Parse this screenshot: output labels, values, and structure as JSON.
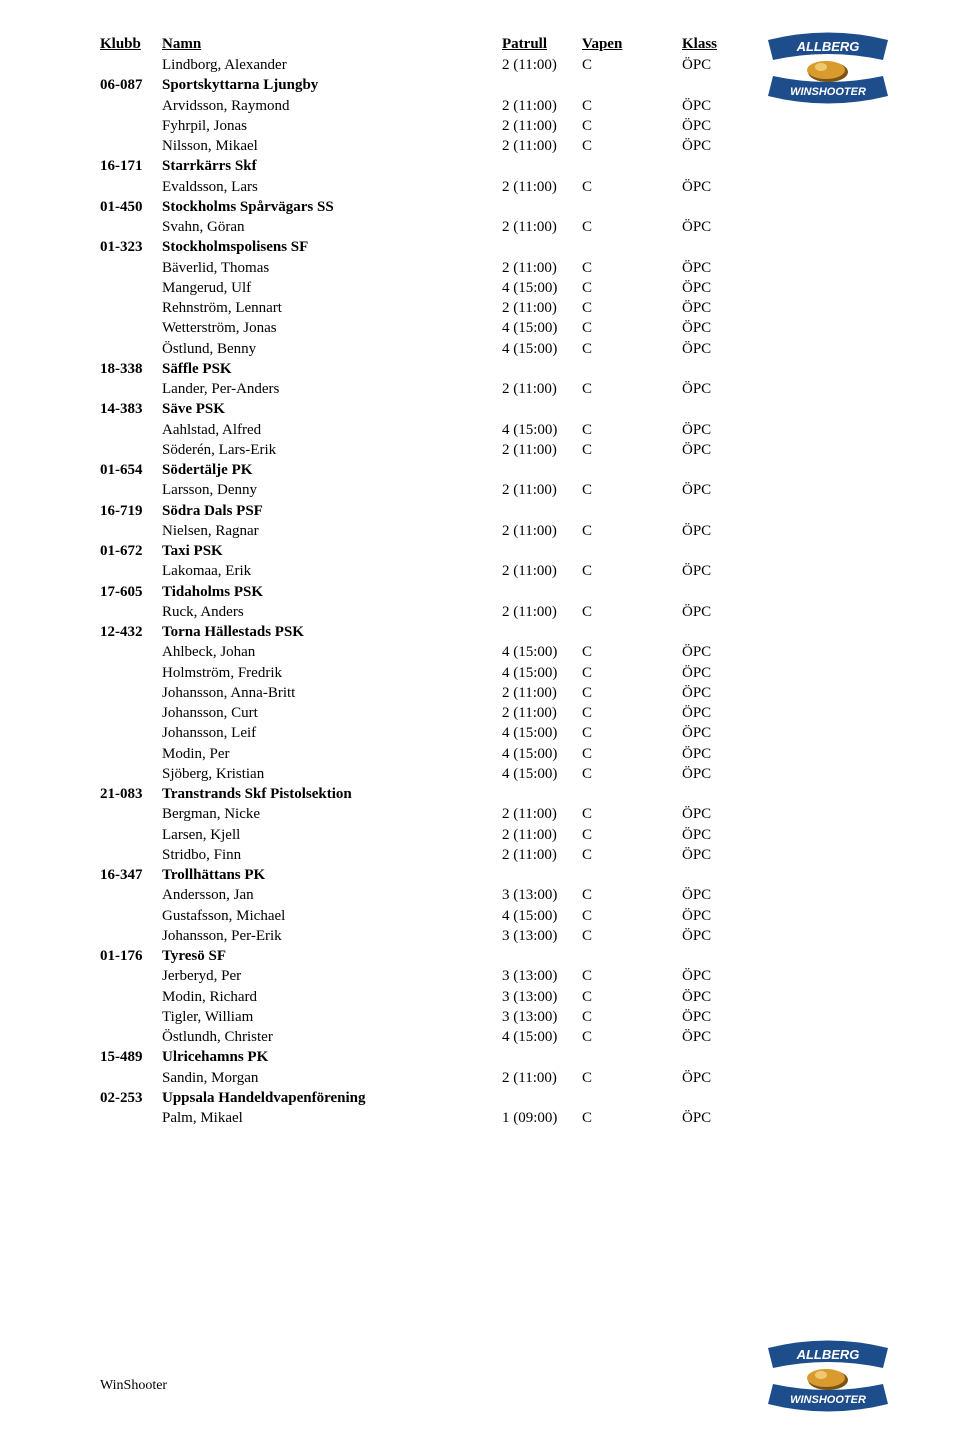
{
  "header": {
    "klubb": "Klubb",
    "namn": "Namn",
    "patrull": "Patrull",
    "vapen": "Vapen",
    "klass": "Klass"
  },
  "footer": "WinShooter",
  "logo": {
    "top_text": "ALLBERG",
    "bottom_text": "WINSHOOTER",
    "banner_color": "#1e4d8c",
    "text_color": "#ffffff",
    "bullet_color": "#d99a2e",
    "bullet_shadow": "#7a5415"
  },
  "colors": {
    "text": "#000000",
    "background": "#ffffff"
  },
  "rows": [
    {
      "type": "person",
      "name": "Lindborg, Alexander",
      "patrull": "2 (11:00)",
      "vapen": "C",
      "klass": "ÖPC"
    },
    {
      "type": "club",
      "code": "06-087",
      "name": "Sportskyttarna Ljungby"
    },
    {
      "type": "person",
      "name": "Arvidsson, Raymond",
      "patrull": "2 (11:00)",
      "vapen": "C",
      "klass": "ÖPC"
    },
    {
      "type": "person",
      "name": "Fyhrpil, Jonas",
      "patrull": "2 (11:00)",
      "vapen": "C",
      "klass": "ÖPC"
    },
    {
      "type": "person",
      "name": "Nilsson, Mikael",
      "patrull": "2 (11:00)",
      "vapen": "C",
      "klass": "ÖPC"
    },
    {
      "type": "club",
      "code": "16-171",
      "name": "Starrkärrs Skf"
    },
    {
      "type": "person",
      "name": "Evaldsson, Lars",
      "patrull": "2 (11:00)",
      "vapen": "C",
      "klass": "ÖPC"
    },
    {
      "type": "club",
      "code": "01-450",
      "name": "Stockholms Spårvägars SS"
    },
    {
      "type": "person",
      "name": "Svahn, Göran",
      "patrull": "2 (11:00)",
      "vapen": "C",
      "klass": "ÖPC"
    },
    {
      "type": "club",
      "code": "01-323",
      "name": "Stockholmspolisens SF"
    },
    {
      "type": "person",
      "name": "Bäverlid, Thomas",
      "patrull": "2 (11:00)",
      "vapen": "C",
      "klass": "ÖPC"
    },
    {
      "type": "person",
      "name": "Mangerud, Ulf",
      "patrull": "4 (15:00)",
      "vapen": "C",
      "klass": "ÖPC"
    },
    {
      "type": "person",
      "name": "Rehnström, Lennart",
      "patrull": "2 (11:00)",
      "vapen": "C",
      "klass": "ÖPC"
    },
    {
      "type": "person",
      "name": "Wetterström, Jonas",
      "patrull": "4 (15:00)",
      "vapen": "C",
      "klass": "ÖPC"
    },
    {
      "type": "person",
      "name": "Östlund, Benny",
      "patrull": "4 (15:00)",
      "vapen": "C",
      "klass": "ÖPC"
    },
    {
      "type": "club",
      "code": "18-338",
      "name": "Säffle PSK"
    },
    {
      "type": "person",
      "name": "Lander, Per-Anders",
      "patrull": "2 (11:00)",
      "vapen": "C",
      "klass": "ÖPC"
    },
    {
      "type": "club",
      "code": "14-383",
      "name": "Säve PSK"
    },
    {
      "type": "person",
      "name": "Aahlstad, Alfred",
      "patrull": "4 (15:00)",
      "vapen": "C",
      "klass": "ÖPC"
    },
    {
      "type": "person",
      "name": "Söderén, Lars-Erik",
      "patrull": "2 (11:00)",
      "vapen": "C",
      "klass": "ÖPC"
    },
    {
      "type": "club",
      "code": "01-654",
      "name": "Södertälje PK"
    },
    {
      "type": "person",
      "name": "Larsson, Denny",
      "patrull": "2 (11:00)",
      "vapen": "C",
      "klass": "ÖPC"
    },
    {
      "type": "club",
      "code": "16-719",
      "name": "Södra Dals PSF"
    },
    {
      "type": "person",
      "name": "Nielsen, Ragnar",
      "patrull": "2 (11:00)",
      "vapen": "C",
      "klass": "ÖPC"
    },
    {
      "type": "club",
      "code": "01-672",
      "name": "Taxi PSK"
    },
    {
      "type": "person",
      "name": "Lakomaa, Erik",
      "patrull": "2 (11:00)",
      "vapen": "C",
      "klass": "ÖPC"
    },
    {
      "type": "club",
      "code": "17-605",
      "name": "Tidaholms PSK"
    },
    {
      "type": "person",
      "name": "Ruck, Anders",
      "patrull": "2 (11:00)",
      "vapen": "C",
      "klass": "ÖPC"
    },
    {
      "type": "club",
      "code": "12-432",
      "name": "Torna Hällestads PSK"
    },
    {
      "type": "person",
      "name": "Ahlbeck, Johan",
      "patrull": "4 (15:00)",
      "vapen": "C",
      "klass": "ÖPC"
    },
    {
      "type": "person",
      "name": "Holmström, Fredrik",
      "patrull": "4 (15:00)",
      "vapen": "C",
      "klass": "ÖPC"
    },
    {
      "type": "person",
      "name": "Johansson, Anna-Britt",
      "patrull": "2 (11:00)",
      "vapen": "C",
      "klass": "ÖPC"
    },
    {
      "type": "person",
      "name": "Johansson, Curt",
      "patrull": "2 (11:00)",
      "vapen": "C",
      "klass": "ÖPC"
    },
    {
      "type": "person",
      "name": "Johansson, Leif",
      "patrull": "4 (15:00)",
      "vapen": "C",
      "klass": "ÖPC"
    },
    {
      "type": "person",
      "name": "Modin, Per",
      "patrull": "4 (15:00)",
      "vapen": "C",
      "klass": "ÖPC"
    },
    {
      "type": "person",
      "name": "Sjöberg, Kristian",
      "patrull": "4 (15:00)",
      "vapen": "C",
      "klass": "ÖPC"
    },
    {
      "type": "club",
      "code": "21-083",
      "name": "Transtrands Skf Pistolsektion"
    },
    {
      "type": "person",
      "name": "Bergman, Nicke",
      "patrull": "2 (11:00)",
      "vapen": "C",
      "klass": "ÖPC"
    },
    {
      "type": "person",
      "name": "Larsen, Kjell",
      "patrull": "2 (11:00)",
      "vapen": "C",
      "klass": "ÖPC"
    },
    {
      "type": "person",
      "name": "Stridbo, Finn",
      "patrull": "2 (11:00)",
      "vapen": "C",
      "klass": "ÖPC"
    },
    {
      "type": "club",
      "code": "16-347",
      "name": "Trollhättans PK"
    },
    {
      "type": "person",
      "name": "Andersson, Jan",
      "patrull": "3 (13:00)",
      "vapen": "C",
      "klass": "ÖPC"
    },
    {
      "type": "person",
      "name": "Gustafsson, Michael",
      "patrull": "4 (15:00)",
      "vapen": "C",
      "klass": "ÖPC"
    },
    {
      "type": "person",
      "name": "Johansson, Per-Erik",
      "patrull": "3 (13:00)",
      "vapen": "C",
      "klass": "ÖPC"
    },
    {
      "type": "club",
      "code": "01-176",
      "name": "Tyresö SF"
    },
    {
      "type": "person",
      "name": "Jerberyd, Per",
      "patrull": "3 (13:00)",
      "vapen": "C",
      "klass": "ÖPC"
    },
    {
      "type": "person",
      "name": "Modin, Richard",
      "patrull": "3 (13:00)",
      "vapen": "C",
      "klass": "ÖPC"
    },
    {
      "type": "person",
      "name": "Tigler, William",
      "patrull": "3 (13:00)",
      "vapen": "C",
      "klass": "ÖPC"
    },
    {
      "type": "person",
      "name": "Östlundh, Christer",
      "patrull": "4 (15:00)",
      "vapen": "C",
      "klass": "ÖPC"
    },
    {
      "type": "club",
      "code": "15-489",
      "name": "Ulricehamns PK"
    },
    {
      "type": "person",
      "name": "Sandin, Morgan",
      "patrull": "2 (11:00)",
      "vapen": "C",
      "klass": "ÖPC"
    },
    {
      "type": "club",
      "code": "02-253",
      "name": "Uppsala Handeldvapenförening"
    },
    {
      "type": "person",
      "name": "Palm, Mikael",
      "patrull": "1 (09:00)",
      "vapen": "C",
      "klass": "ÖPC"
    }
  ]
}
